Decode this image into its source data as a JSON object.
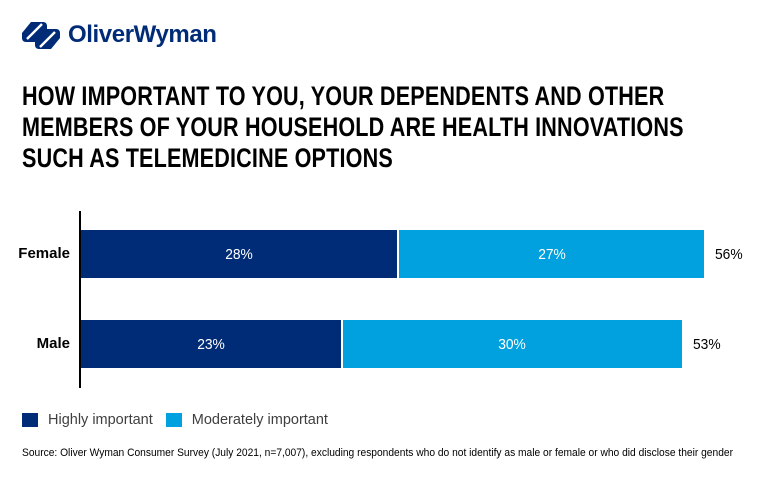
{
  "brand": {
    "logo_text": "OliverWyman",
    "logo_color": "#002c77"
  },
  "title": {
    "lines": [
      "HOW IMPORTANT TO YOU, YOUR DEPENDENTS AND OTHER",
      "MEMBERS OF YOUR HOUSEHOLD ARE HEALTH INNOVATIONS",
      "SUCH AS TELEMEDICINE OPTIONS"
    ]
  },
  "chart_data": {
    "type": "bar",
    "orientation": "horizontal",
    "stacked": true,
    "categories": [
      "Female",
      "Male"
    ],
    "series": [
      {
        "name": "Highly important",
        "color": "#002c77",
        "values": [
          28,
          23
        ],
        "labels": [
          "28%",
          "23%"
        ]
      },
      {
        "name": "Moderately important",
        "color": "#00a1de",
        "values": [
          27,
          30
        ],
        "labels": [
          "27%",
          "30%"
        ]
      }
    ],
    "totals": [
      56,
      53
    ],
    "total_labels": [
      "56%",
      "53%"
    ],
    "xlim": [
      0,
      60
    ],
    "grid": false,
    "legend_position": "bottom"
  },
  "source": "Source: Oliver Wyman Consumer Survey (July 2021, n=7,007), excluding respondents who do not identify as male or female or who did disclose their gender"
}
